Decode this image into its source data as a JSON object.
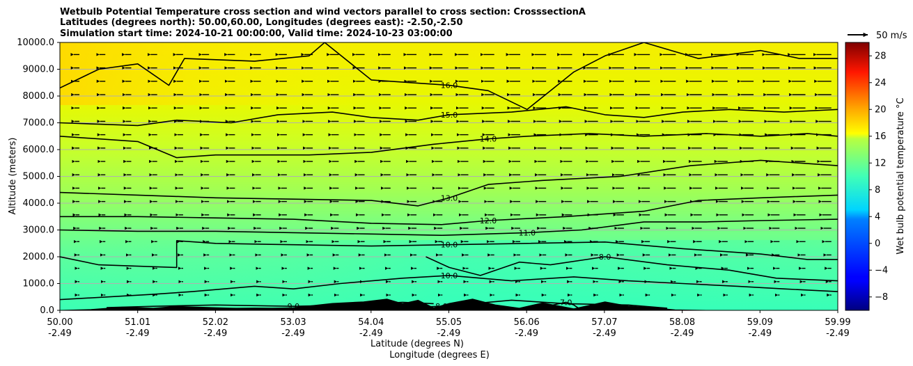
{
  "chart_data": {
    "type": "heatmap",
    "title": [
      "Wetbulb Potential Temperature cross section and wind vectors parallel to cross section: CrosssectionA",
      "Latitudes (degrees north): 50.00,60.00, Longitudes (degrees east): -2.50,-2.50",
      "Simulation start time: 2024-10-21 00:00:00, Valid time: 2024-10-23 03:00:00"
    ],
    "xlabel": "Latitude (degrees N)",
    "xlabel2": "Longitude (degrees E)",
    "ylabel": "Altitude (meters)",
    "colorbar_label": "Wet bulb potential temperature °C",
    "colormap": "jet",
    "x_range": [
      50.0,
      59.99
    ],
    "ylim": [
      0,
      10000
    ],
    "clim": [
      -10,
      30
    ],
    "x_ticks": [
      {
        "lat": "50.00",
        "lon": "-2.49"
      },
      {
        "lat": "51.01",
        "lon": "-2.49"
      },
      {
        "lat": "52.02",
        "lon": "-2.49"
      },
      {
        "lat": "53.03",
        "lon": "-2.49"
      },
      {
        "lat": "54.04",
        "lon": "-2.49"
      },
      {
        "lat": "55.05",
        "lon": "-2.49"
      },
      {
        "lat": "56.06",
        "lon": "-2.49"
      },
      {
        "lat": "57.07",
        "lon": "-2.49"
      },
      {
        "lat": "58.08",
        "lon": "-2.49"
      },
      {
        "lat": "59.09",
        "lon": "-2.49"
      },
      {
        "lat": "59.99",
        "lon": "-2.49"
      }
    ],
    "y_ticks": [
      "0.0",
      "1000.0",
      "2000.0",
      "3000.0",
      "4000.0",
      "5000.0",
      "6000.0",
      "7000.0",
      "8000.0",
      "9000.0",
      "10000.0"
    ],
    "y_tick_values": [
      0,
      1000,
      2000,
      3000,
      4000,
      5000,
      6000,
      7000,
      8000,
      9000,
      10000
    ],
    "colorbar_ticks": [
      "−8",
      "−4",
      "0",
      "4",
      "8",
      "12",
      "16",
      "20",
      "24",
      "28"
    ],
    "colorbar_tick_values": [
      -8,
      -4,
      0,
      4,
      8,
      12,
      16,
      20,
      24,
      28
    ],
    "grid": "horizontal",
    "quiver_key": "50 m/s",
    "contours": [
      {
        "level": "7.0",
        "x": [
          56.0,
          56.2,
          56.5,
          56.6,
          56.7
        ],
        "y": [
          0,
          120,
          300,
          200,
          0
        ]
      },
      {
        "level": "8.0",
        "x": [
          50.6,
          51.5,
          52.5,
          53.5,
          54.3,
          54.9,
          55.3,
          55.8,
          56.5,
          57.3,
          57.8
        ],
        "y": [
          60,
          50,
          80,
          60,
          90,
          150,
          250,
          380,
          250,
          200,
          80
        ]
      },
      {
        "level": "8.0",
        "x": [
          54.7,
          55.0,
          55.4,
          55.9,
          56.3,
          57.0,
          57.8,
          58.6,
          59.2,
          59.99
        ],
        "y": [
          2000,
          1600,
          1300,
          1800,
          1700,
          2000,
          1700,
          1500,
          1200,
          1100
        ]
      },
      {
        "level": "9.0",
        "x": [
          50.6,
          51.2,
          52.0,
          53.0,
          53.8,
          54.4,
          54.8
        ],
        "y": [
          100,
          150,
          200,
          150,
          200,
          300,
          250
        ]
      },
      {
        "level": "10.0",
        "x": [
          50.0,
          50.6,
          51.2,
          51.7,
          52.5,
          53.0,
          53.6,
          54.4,
          55.0,
          55.8,
          56.6,
          57.3,
          58.0,
          58.7,
          59.3,
          59.99
        ],
        "y": [
          400,
          500,
          600,
          700,
          900,
          800,
          1000,
          1200,
          1300,
          1100,
          1250,
          1100,
          1000,
          900,
          800,
          700
        ]
      },
      {
        "level": "10.0",
        "x": [
          50.0,
          50.5,
          51.5,
          51.5,
          52.0,
          53.0,
          54.0,
          55.0,
          56.0,
          57.0,
          58.0,
          59.0,
          59.6,
          59.99
        ],
        "y": [
          2000,
          1700,
          1600,
          2600,
          2500,
          2450,
          2400,
          2450,
          2500,
          2550,
          2300,
          2100,
          1900,
          1900
        ]
      },
      {
        "level": "11.0",
        "x": [
          50.0,
          51.0,
          52.0,
          53.0,
          54.0,
          54.9,
          56.0,
          56.7,
          57.5,
          58.3,
          59.0,
          59.99
        ],
        "y": [
          3000,
          2950,
          2950,
          2900,
          2850,
          2800,
          2900,
          3000,
          3300,
          3300,
          3350,
          3400
        ]
      },
      {
        "level": "12.0",
        "x": [
          50.0,
          51.0,
          52.0,
          53.0,
          54.0,
          54.9,
          55.5,
          56.5,
          57.5,
          58.2,
          59.0,
          59.99
        ],
        "y": [
          3500,
          3500,
          3450,
          3400,
          3250,
          3200,
          3350,
          3500,
          3700,
          4100,
          4200,
          4300
        ]
      },
      {
        "level": "13.0",
        "x": [
          50.0,
          51.0,
          52.0,
          53.0,
          54.0,
          54.6,
          55.0,
          55.5,
          56.2,
          57.2,
          58.1,
          59.0,
          59.99
        ],
        "y": [
          4400,
          4300,
          4200,
          4150,
          4100,
          3900,
          4200,
          4700,
          4850,
          5000,
          5400,
          5600,
          5400
        ]
      },
      {
        "level": "14.0",
        "x": [
          50.0,
          51.0,
          51.5,
          52.0,
          52.6,
          53.2,
          54.0,
          54.8,
          55.5,
          56.0,
          56.8,
          57.5,
          58.3,
          59.0,
          59.6,
          59.99
        ],
        "y": [
          6500,
          6300,
          5700,
          5800,
          5800,
          5800,
          5900,
          6200,
          6400,
          6500,
          6600,
          6500,
          6600,
          6500,
          6600,
          6500
        ]
      },
      {
        "level": "15.0",
        "x": [
          50.0,
          51.0,
          51.5,
          52.2,
          52.8,
          53.5,
          54.0,
          54.6,
          55.0,
          55.8,
          56.5,
          57.0,
          57.5,
          58.0,
          58.6,
          59.3,
          59.99
        ],
        "y": [
          7000,
          6900,
          7100,
          7000,
          7300,
          7400,
          7200,
          7100,
          7300,
          7400,
          7600,
          7300,
          7200,
          7400,
          7500,
          7400,
          7500
        ]
      },
      {
        "level": "16.0",
        "x": [
          50.0,
          50.5,
          51.0,
          51.4,
          51.6,
          52.5,
          53.2,
          53.4,
          54.0,
          55.0,
          55.5,
          56.0,
          56.6,
          57.0,
          57.5,
          58.2,
          59.0,
          59.5,
          59.99
        ],
        "y": [
          8300,
          9000,
          9200,
          8400,
          9400,
          9300,
          9500,
          10000,
          8600,
          8400,
          8200,
          7500,
          8900,
          9500,
          10000,
          9400,
          9700,
          9400,
          9400
        ]
      }
    ],
    "terrain": {
      "x": [
        50.0,
        50.4,
        50.8,
        51.2,
        51.5,
        52.0,
        52.5,
        53.0,
        53.5,
        53.9,
        54.2,
        54.4,
        54.6,
        54.8,
        55.0,
        55.3,
        55.6,
        55.9,
        56.2,
        56.6,
        57.0,
        57.3,
        57.6,
        57.9,
        58.3,
        59.0,
        59.99
      ],
      "y": [
        0,
        30,
        120,
        80,
        150,
        100,
        60,
        100,
        260,
        320,
        420,
        250,
        380,
        90,
        260,
        420,
        200,
        80,
        280,
        60,
        320,
        160,
        100,
        20,
        0,
        0,
        0
      ]
    }
  }
}
